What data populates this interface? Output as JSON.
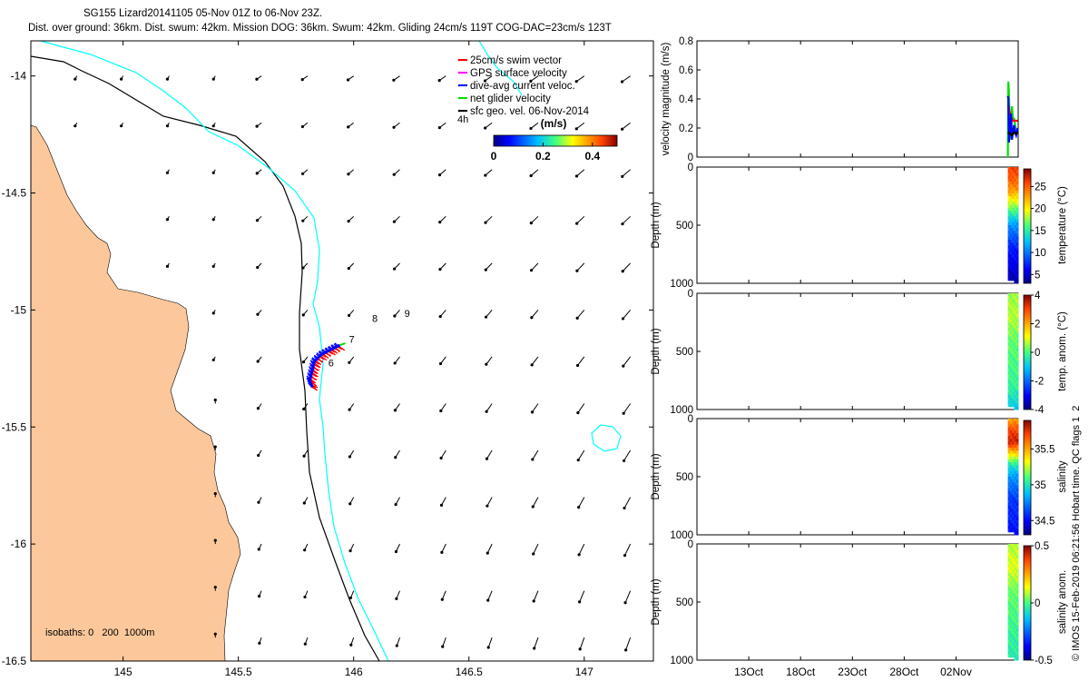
{
  "header": {
    "line1": "SG155 Lizard20141105 05-Nov 01Z to 06-Nov 23Z.",
    "line2": "Dist. over ground: 36km. Dist. swum: 42km. Mission DOG: 36km. Swum: 42km. Gliding 24cm/s 119T COG-DAC=23cm/s 123T"
  },
  "chart_data": [
    {
      "type": "map",
      "xlim": [
        144.6,
        147.3
      ],
      "ylim": [
        -16.5,
        -13.85
      ],
      "x_ticks": [
        "145",
        "145.5",
        "146",
        "146.5",
        "147"
      ],
      "y_ticks": [
        "-14",
        "-14.5",
        "-15",
        "-15.5",
        "-16",
        "-16.5"
      ],
      "legend": [
        {
          "label": "25cm/s swim vector",
          "color": "#ff0000"
        },
        {
          "label": "GPS surface velocity",
          "color": "#ff00ff"
        },
        {
          "label": "dive-avg current veloc.",
          "color": "#0000ff"
        },
        {
          "label": "net glider velocity",
          "color": "#00e000"
        },
        {
          "label": "sfc geo. vel. 06-Nov-2014",
          "color": "#000000"
        }
      ],
      "colorbar": {
        "label": "(m/s)",
        "ticks": [
          "0",
          "0.2",
          "0.4"
        ],
        "range": [
          0,
          0.5
        ]
      },
      "isobath_label": "isobaths: 0   200  1000m",
      "annotations": [
        {
          "text": "4h",
          "lon": 146.45,
          "lat": -14.2
        },
        {
          "text": "6",
          "lon": 145.89,
          "lat": -15.24
        },
        {
          "text": "7",
          "lon": 145.98,
          "lat": -15.14
        },
        {
          "text": "8",
          "lon": 146.08,
          "lat": -15.05
        },
        {
          "text": "9",
          "lon": 146.22,
          "lat": -15.03
        }
      ],
      "vector_grid_lon": [
        144.8,
        145.0,
        145.2,
        145.4,
        145.6,
        145.8,
        146.0,
        146.2,
        146.4,
        146.6,
        146.8,
        147.0,
        147.2
      ],
      "vector_grid_lat": [
        -14.0,
        -14.2,
        -14.4,
        -14.6,
        -14.8,
        -15.0,
        -15.2,
        -15.4,
        -15.6,
        -15.8,
        -16.0,
        -16.2,
        -16.4
      ],
      "track": [
        {
          "lon": 145.82,
          "lat": -15.33
        },
        {
          "lon": 145.81,
          "lat": -15.3
        },
        {
          "lon": 145.82,
          "lat": -15.26
        },
        {
          "lon": 145.83,
          "lat": -15.22
        },
        {
          "lon": 145.86,
          "lat": -15.19
        },
        {
          "lon": 145.9,
          "lat": -15.17
        },
        {
          "lon": 145.94,
          "lat": -15.15
        }
      ]
    },
    {
      "type": "line",
      "ylabel": "velocity magnitude (m/s)",
      "ylim": [
        0,
        0.8
      ],
      "y_ticks": [
        "0",
        "0.2",
        "0.4",
        "0.6",
        "0.8"
      ],
      "series": [
        {
          "color": "#00e000",
          "x": [
            38.0,
            38.05,
            38.1,
            38.2,
            38.3,
            38.4,
            38.5,
            38.6,
            38.7,
            38.8,
            38.95
          ],
          "y": [
            0.0,
            0.52,
            0.45,
            0.2,
            0.12,
            0.35,
            0.25,
            0.27,
            0.22,
            0.18,
            0.17
          ]
        },
        {
          "color": "#ff0000",
          "x": [
            38.0,
            38.1,
            38.2,
            38.3,
            38.4,
            38.5,
            38.6,
            38.8,
            38.95
          ],
          "y": [
            0.36,
            0.35,
            0.3,
            0.28,
            0.26,
            0.25,
            0.25,
            0.25,
            0.25
          ]
        },
        {
          "color": "#0000ff",
          "x": [
            38.0,
            38.05,
            38.1,
            38.2,
            38.3,
            38.4,
            38.5,
            38.6,
            38.7,
            38.8,
            38.95
          ],
          "y": [
            0.42,
            0.4,
            0.1,
            0.18,
            0.3,
            0.12,
            0.18,
            0.22,
            0.17,
            0.15,
            0.2
          ]
        },
        {
          "color": "#000000",
          "x": [
            38.0,
            38.2,
            38.4,
            38.6,
            38.8,
            38.95
          ],
          "y": [
            0.17,
            0.16,
            0.15,
            0.17,
            0.16,
            0.17
          ]
        }
      ]
    },
    {
      "type": "heatmap",
      "ylabel": "Depth (m)",
      "ylim": [
        1000,
        0
      ],
      "y_ticks": [
        "0",
        "500",
        "1000"
      ],
      "cbar_label": "temperature (°C)",
      "cbar_ticks": [
        "5",
        "10",
        "15",
        "20",
        "25"
      ],
      "crange": [
        3,
        29
      ],
      "profile": [
        [
          0,
          26
        ],
        [
          100,
          25
        ],
        [
          200,
          23
        ],
        [
          300,
          19
        ],
        [
          400,
          15
        ],
        [
          500,
          11
        ],
        [
          600,
          9
        ],
        [
          700,
          7
        ],
        [
          800,
          6
        ],
        [
          900,
          5
        ],
        [
          1000,
          4
        ]
      ]
    },
    {
      "type": "heatmap",
      "ylabel": "Depth (m)",
      "ylim": [
        1000,
        0
      ],
      "y_ticks": [
        "0",
        "500",
        "1000"
      ],
      "cbar_label": "temp. anom. (°C)",
      "cbar_ticks": [
        "-4",
        "-2",
        "0",
        "2",
        "4"
      ],
      "crange": [
        -4,
        4
      ],
      "profile": [
        [
          0,
          0.5
        ],
        [
          200,
          0.7
        ],
        [
          400,
          0.2
        ],
        [
          600,
          0.0
        ],
        [
          800,
          -0.2
        ],
        [
          1000,
          -1.0
        ]
      ]
    },
    {
      "type": "heatmap",
      "ylabel": "Depth (m)",
      "ylim": [
        1000,
        0
      ],
      "y_ticks": [
        "0",
        "500",
        "1000"
      ],
      "cbar_label": "salinity",
      "cbar_ticks": [
        "34.5",
        "35",
        "35.5"
      ],
      "crange": [
        34.3,
        35.9
      ],
      "profile": [
        [
          0,
          35.5
        ],
        [
          100,
          35.7
        ],
        [
          200,
          35.8
        ],
        [
          300,
          35.4
        ],
        [
          400,
          35.0
        ],
        [
          500,
          34.8
        ],
        [
          700,
          34.6
        ],
        [
          900,
          34.55
        ],
        [
          1000,
          34.5
        ]
      ]
    },
    {
      "type": "heatmap",
      "ylabel": "Depth (m)",
      "ylim": [
        1000,
        0
      ],
      "y_ticks": [
        "0",
        "500",
        "1000"
      ],
      "cbar_label": "salinity anom.",
      "cbar_ticks": [
        "-0.5",
        "0",
        "0.5"
      ],
      "crange": [
        -0.5,
        0.5
      ],
      "profile": [
        [
          0,
          0.08
        ],
        [
          200,
          0.12
        ],
        [
          400,
          0.03
        ],
        [
          600,
          0.0
        ],
        [
          800,
          -0.03
        ],
        [
          1000,
          -0.05
        ]
      ]
    }
  ],
  "time_axis": {
    "labels": [
      "13Oct",
      "18Oct",
      "23Oct",
      "28Oct",
      "02Nov"
    ],
    "positions_days": [
      13,
      18,
      23,
      28,
      33
    ],
    "xlim_days": [
      8,
      39
    ]
  },
  "credit": "© IMOS 15-Feb-2019 06:21:56 Hobart time. QC flags 1  2"
}
